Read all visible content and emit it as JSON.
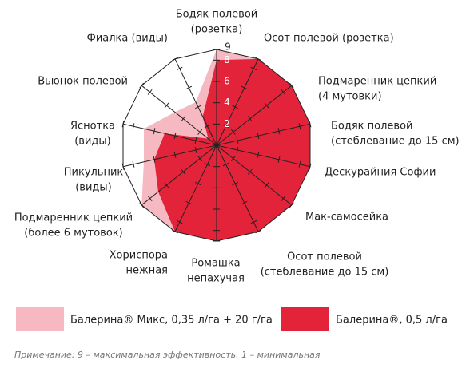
{
  "chart_data": {
    "type": "radar",
    "categories": [
      [
        "Бодяк полевой",
        "(розетка)"
      ],
      [
        "Осот полевой (розетка)"
      ],
      [
        "Подмаренник цепкий",
        "(4 мутовки)"
      ],
      [
        "Бодяк полевой",
        "(стеблевание до 15 см)"
      ],
      [
        "Дескурайния Софии"
      ],
      [
        "Мак-самосейка"
      ],
      [
        "Осот полевой",
        "(стеблевание до 15 см)"
      ],
      [
        "Ромашка",
        "непахучая"
      ],
      [
        "Хориспора",
        "нежная"
      ],
      [
        "Подмаренник цепкий",
        "(более 6 мутовок)"
      ],
      [
        "Пикульник",
        "(виды)"
      ],
      [
        "Яснотка",
        "(виды)"
      ],
      [
        "Вьюнок полевой"
      ],
      [
        "Фиалка (виды)"
      ]
    ],
    "series": [
      {
        "name": "Балерина® Микс, 0,35 л/га + 20 г/га",
        "color": "#f6b8c1",
        "values": [
          9,
          9,
          9,
          9,
          9,
          9,
          9,
          9,
          9,
          9,
          7,
          7,
          5,
          4.5
        ]
      },
      {
        "name": "Балерина®, 0,5 л/га",
        "color": "#e3233a",
        "values": [
          8,
          9,
          9,
          9,
          9,
          9,
          9,
          9,
          9,
          7,
          6,
          5,
          1,
          3
        ]
      }
    ],
    "rlim": [
      0,
      9
    ],
    "rticks": [
      2,
      4,
      6,
      8,
      9
    ],
    "note": "Примечание: 9 – максимальная эффективность, 1 – минимальная"
  }
}
